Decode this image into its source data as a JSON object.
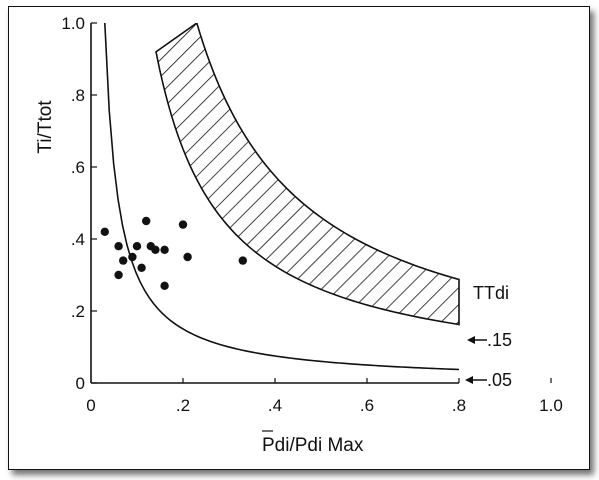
{
  "chart_data": {
    "type": "scatter",
    "xlabel": "Pdi/Pdi Max",
    "ylabel": "Ti/Ttot",
    "xlim": [
      0,
      1.0
    ],
    "ylim": [
      0,
      1.0
    ],
    "x_ticks": [
      "0",
      ".2",
      ".4",
      ".6",
      ".8",
      "1.0"
    ],
    "y_ticks": [
      "0",
      ".2",
      ".4",
      ".6",
      ".8",
      "1.0"
    ],
    "grid": false,
    "points": [
      {
        "x": 0.03,
        "y": 0.42
      },
      {
        "x": 0.06,
        "y": 0.38
      },
      {
        "x": 0.07,
        "y": 0.34
      },
      {
        "x": 0.09,
        "y": 0.35
      },
      {
        "x": 0.1,
        "y": 0.38
      },
      {
        "x": 0.11,
        "y": 0.32
      },
      {
        "x": 0.06,
        "y": 0.3
      },
      {
        "x": 0.12,
        "y": 0.45
      },
      {
        "x": 0.13,
        "y": 0.38
      },
      {
        "x": 0.14,
        "y": 0.37
      },
      {
        "x": 0.16,
        "y": 0.37
      },
      {
        "x": 0.16,
        "y": 0.27
      },
      {
        "x": 0.2,
        "y": 0.44
      },
      {
        "x": 0.21,
        "y": 0.35
      },
      {
        "x": 0.33,
        "y": 0.34
      }
    ],
    "curves": [
      {
        "label": ".05",
        "type": "line",
        "equation_constant": 0.03
      },
      {
        "label": ".15",
        "type": "hatched_band",
        "equation_constant": 0.13
      },
      {
        "label": "",
        "type": "hatched_band_upper",
        "equation_constant": 0.23
      }
    ],
    "annotations": {
      "band_title": "TTdi",
      "label_upper": ".15",
      "label_lower": ".05"
    }
  }
}
